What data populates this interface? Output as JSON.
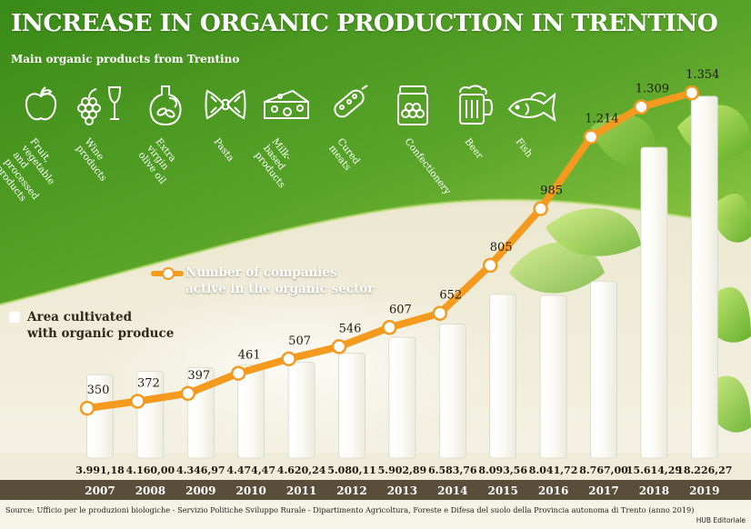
{
  "header": {
    "title": "INCREASE IN ORGANIC PRODUCTION IN TRENTINO",
    "subtitle": "Main organic products from Trentino"
  },
  "products": [
    {
      "icon": "apple-icon",
      "label": "Fruit, vegetable\nand processed\nproducts"
    },
    {
      "icon": "wine-icon",
      "label": "Wine\nproducts"
    },
    {
      "icon": "olive-oil-icon",
      "label": "Extra virgin\nolive oil"
    },
    {
      "icon": "pasta-icon",
      "label": "Pasta"
    },
    {
      "icon": "cheese-icon",
      "label": "Milk-based\nproducts"
    },
    {
      "icon": "cured-meat-icon",
      "label": "Cured\nmeats"
    },
    {
      "icon": "confectionery-jar-icon",
      "label": "Confectionery"
    },
    {
      "icon": "beer-mug-icon",
      "label": "Beer"
    },
    {
      "icon": "fish-icon",
      "label": "Fish"
    }
  ],
  "legend": {
    "companies_line1": "Number of companies",
    "companies_line2": "active in the organic sector",
    "area_line1": "Area cultivated",
    "area_line2": "with organic produce"
  },
  "footer": {
    "source": "Source: Ufficio per le produzioni biologiche - Servizio Politiche Sviluppo Rurale - Dipartimento Agricoltura, Foreste e Difesa del suolo della Provincia autonoma di Trento (anno 2019)",
    "credit": "HUB Editoriale"
  },
  "colors": {
    "green_dark": "#3d8a1a",
    "green_light": "#8cc63f",
    "line_orange": "#f39a1f",
    "bar_white": "#ffffff",
    "year_band": "#5a4e3a"
  },
  "chart_data": {
    "type": "bar",
    "categories": [
      "2007",
      "2008",
      "2009",
      "2010",
      "2011",
      "2012",
      "2013",
      "2014",
      "2015",
      "2016",
      "2017",
      "2018",
      "2019"
    ],
    "series": [
      {
        "name": "Area cultivated with organic produce",
        "type": "bar",
        "values": [
          3991.18,
          4160.0,
          4346.97,
          4474.47,
          4620.24,
          5080.11,
          5902.89,
          6583.76,
          8093.56,
          8041.72,
          8767.0,
          15614.29,
          18226.27
        ],
        "labels": [
          "3.991,18",
          "4.160,00",
          "4.346,97",
          "4.474,47",
          "4.620,24",
          "5.080,11",
          "5.902,89",
          "6.583,76",
          "8.093,56",
          "8.041,72",
          "8.767,00",
          "15.614,29",
          "18.226,27"
        ]
      },
      {
        "name": "Number of companies active in the organic sector",
        "type": "line",
        "values": [
          350,
          372,
          397,
          461,
          507,
          546,
          607,
          652,
          805,
          985,
          1214,
          1309,
          1354
        ],
        "labels": [
          "350",
          "372",
          "397",
          "461",
          "507",
          "546",
          "607",
          "652",
          "805",
          "985",
          "1.214",
          "1.309",
          "1.354"
        ]
      }
    ],
    "legend": "left"
  }
}
